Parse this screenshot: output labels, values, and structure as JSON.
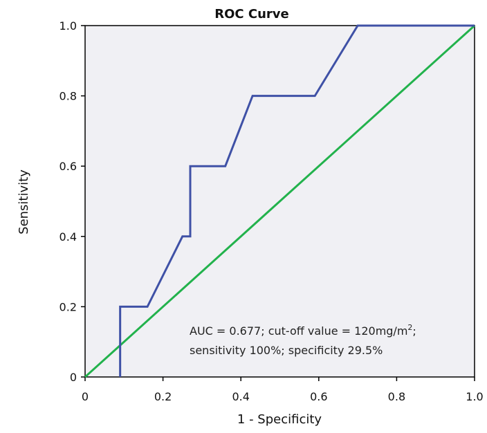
{
  "chart_data": {
    "type": "line",
    "title": "ROC Curve",
    "xlabel": "1 - Specificity",
    "ylabel": "Sensitivity",
    "xlim": [
      0,
      1
    ],
    "ylim": [
      0,
      1
    ],
    "x_ticks": [
      "0",
      "0.2",
      "0.4",
      "0.6",
      "0.8",
      "1.0"
    ],
    "y_ticks": [
      "0",
      "0.2",
      "0.4",
      "0.6",
      "0.8",
      "1.0"
    ],
    "grid": false,
    "legend": "none",
    "series": [
      {
        "color": "#3f51a6",
        "x": [
          0.09,
          0.09,
          0.09,
          0.16,
          0.25,
          0.27,
          0.27,
          0.36,
          0.43,
          0.59,
          0.7,
          1.0
        ],
        "y": [
          0.0,
          0.0,
          0.2,
          0.2,
          0.4,
          0.4,
          0.6,
          0.6,
          0.8,
          0.8,
          1.0,
          1.0
        ]
      },
      {
        "color": "#22b24c",
        "x": [
          0.0,
          1.0
        ],
        "y": [
          0.0,
          1.0
        ]
      }
    ],
    "annotation": {
      "line1_main": "AUC = 0.677; cut-off value = 120mg/m",
      "line1_sup": "2",
      "line1_end": ";",
      "line2": "sensitivity 100%; specificity 29.5%"
    },
    "colors": {
      "plot_background": "#f0f0f4",
      "axis": "#000000"
    }
  }
}
